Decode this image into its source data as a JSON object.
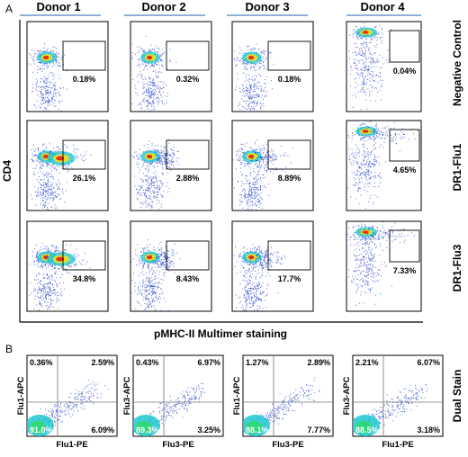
{
  "panel_a": {
    "letter": "A",
    "y_axis_label": "CD4",
    "x_axis_label": "pMHC-II Multimer staining",
    "donors": [
      "Donor 1",
      "Donor 2",
      "Donor 3",
      "Donor 4"
    ],
    "conditions": [
      "Negative Control",
      "DR1-Flu1",
      "DR1-Flu3"
    ],
    "gate_percentages": [
      [
        "0.18%",
        "0.32%",
        "0.18%",
        "0.04%"
      ],
      [
        "26.1%",
        "2.88%",
        "8.89%",
        "4.65%"
      ],
      [
        "34.8%",
        "8.43%",
        "17.7%",
        "7.33%"
      ]
    ]
  },
  "panel_b": {
    "letter": "B",
    "row_label": "Dual Stain",
    "plots": [
      {
        "y_label": "Flu1-APC",
        "x_label": "Flu1-PE",
        "q_ul": "0.36%",
        "q_ur": "2.59%",
        "q_ll": "91.0%",
        "q_lr": "6.09%"
      },
      {
        "y_label": "Flu3-APC",
        "x_label": "Flu3-PE",
        "q_ul": "0.43%",
        "q_ur": "6.97%",
        "q_ll": "89.3%",
        "q_lr": "3.25%"
      },
      {
        "y_label": "Flu1-APC",
        "x_label": "Flu3-PE",
        "q_ul": "1.27%",
        "q_ur": "2.89%",
        "q_ll": "88.1%",
        "q_lr": "7.77%"
      },
      {
        "y_label": "Flu3-APC",
        "x_label": "Flu1-PE",
        "q_ul": "2.21%",
        "q_ur": "6.07%",
        "q_ll": "88.5%",
        "q_lr": "3.18%"
      }
    ]
  },
  "colors": {
    "density_low": "#1f3cc8",
    "density_mid": "#1ec8d0",
    "density_high": "#f0e020",
    "density_peak": "#e02010",
    "underline": "#4a7fc0"
  }
}
